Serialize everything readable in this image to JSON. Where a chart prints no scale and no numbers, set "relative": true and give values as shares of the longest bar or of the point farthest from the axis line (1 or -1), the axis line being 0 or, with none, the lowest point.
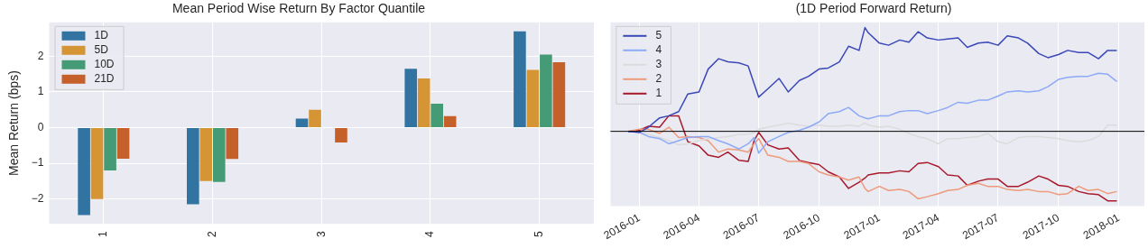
{
  "chart_data": [
    {
      "type": "bar",
      "title": "Mean Period Wise Return By Factor Quantile",
      "ylabel": "Mean Return (bps)",
      "categories": [
        "1",
        "2",
        "3",
        "4",
        "5"
      ],
      "series": [
        {
          "name": "1D",
          "color": "#3274a1",
          "values": [
            -2.45,
            -2.15,
            0.25,
            1.65,
            2.7
          ]
        },
        {
          "name": "5D",
          "color": "#d69534",
          "values": [
            -2.0,
            -1.5,
            0.5,
            1.38,
            1.62
          ]
        },
        {
          "name": "10D",
          "color": "#459b76",
          "values": [
            -1.2,
            -1.52,
            null,
            0.67,
            2.05
          ]
        },
        {
          "name": "21D",
          "color": "#c6602a",
          "values": [
            -0.87,
            -0.88,
            -0.42,
            0.32,
            1.83
          ]
        }
      ],
      "ylim": [
        -2.7,
        2.95
      ],
      "yticks": [
        -2,
        -1,
        0,
        1,
        2
      ],
      "grid": true,
      "legend": "top left"
    },
    {
      "type": "line",
      "title": "(1D Period Forward Return)",
      "relative": true,
      "x": [
        "2015-12-15",
        "2016-01-01",
        "2016-01-15",
        "2016-02-01",
        "2016-02-15",
        "2016-03-01",
        "2016-03-15",
        "2016-04-01",
        "2016-04-15",
        "2016-05-01",
        "2016-05-15",
        "2016-06-01",
        "2016-06-15",
        "2016-06-24",
        "2016-07-01",
        "2016-07-15",
        "2016-08-01",
        "2016-08-15",
        "2016-09-01",
        "2016-09-15",
        "2016-10-01",
        "2016-10-15",
        "2016-11-01",
        "2016-11-15",
        "2016-12-01",
        "2016-12-10",
        "2016-12-15",
        "2017-01-01",
        "2017-01-15",
        "2017-02-01",
        "2017-02-15",
        "2017-03-01",
        "2017-03-15",
        "2017-04-01",
        "2017-04-15",
        "2017-05-01",
        "2017-05-15",
        "2017-06-01",
        "2017-06-15",
        "2017-07-01",
        "2017-07-15",
        "2017-08-01",
        "2017-08-15",
        "2017-09-01",
        "2017-09-15",
        "2017-10-01",
        "2017-10-15",
        "2017-11-01",
        "2017-11-15",
        "2017-12-01",
        "2017-12-15",
        "2017-12-29"
      ],
      "series": [
        {
          "name": "5",
          "color": "#3a48b8",
          "values": [
            0,
            -0.01,
            0.04,
            0.13,
            0.15,
            0.19,
            0.36,
            0.38,
            0.6,
            0.7,
            0.67,
            0.66,
            0.63,
            0.46,
            0.33,
            0.41,
            0.51,
            0.38,
            0.49,
            0.53,
            0.6,
            0.61,
            0.67,
            0.82,
            0.78,
            1.0,
            0.95,
            0.85,
            0.83,
            0.88,
            0.86,
            0.96,
            0.9,
            0.88,
            0.89,
            0.9,
            0.81,
            0.85,
            0.86,
            0.83,
            0.92,
            0.9,
            0.85,
            0.75,
            0.71,
            0.74,
            0.78,
            0.76,
            0.76,
            0.7,
            0.78,
            0.78
          ]
        },
        {
          "name": "4",
          "color": "#8daaf7",
          "values": [
            0,
            -0.01,
            -0.05,
            -0.07,
            -0.12,
            -0.09,
            -0.06,
            -0.05,
            -0.05,
            -0.09,
            -0.12,
            -0.17,
            -0.12,
            -0.06,
            -0.21,
            -0.1,
            -0.05,
            -0.01,
            0.01,
            0.04,
            0.09,
            0.17,
            0.19,
            0.23,
            0.15,
            0.13,
            0.12,
            0.15,
            0.15,
            0.19,
            0.2,
            0.2,
            0.17,
            0.2,
            0.23,
            0.28,
            0.27,
            0.3,
            0.3,
            0.34,
            0.38,
            0.39,
            0.38,
            0.39,
            0.43,
            0.5,
            0.52,
            0.53,
            0.53,
            0.56,
            0.55,
            0.48
          ]
        },
        {
          "name": "3",
          "color": "#dcdbdb",
          "values": [
            0,
            -0.01,
            -0.03,
            -0.06,
            -0.09,
            -0.13,
            -0.12,
            -0.09,
            -0.07,
            -0.06,
            -0.05,
            -0.03,
            -0.03,
            -0.01,
            0.02,
            0.04,
            0.06,
            0.08,
            0.06,
            0.05,
            0.06,
            0.05,
            0.05,
            0.06,
            0.05,
            0.08,
            0.06,
            0.04,
            0.05,
            0.02,
            -0.02,
            -0.05,
            -0.07,
            -0.12,
            -0.07,
            -0.07,
            -0.06,
            -0.05,
            -0.02,
            -0.1,
            -0.12,
            -0.06,
            -0.05,
            -0.05,
            -0.06,
            -0.07,
            -0.09,
            -0.1,
            -0.09,
            -0.05,
            0.06,
            0.06
          ]
        },
        {
          "name": "2",
          "color": "#ee9a7b",
          "values": [
            0,
            0.02,
            0.02,
            -0.02,
            0.04,
            -0.06,
            -0.05,
            -0.06,
            -0.09,
            -0.2,
            -0.17,
            -0.18,
            -0.2,
            -0.12,
            -0.07,
            -0.23,
            -0.25,
            -0.29,
            -0.29,
            -0.31,
            -0.39,
            -0.42,
            -0.44,
            -0.47,
            -0.44,
            -0.55,
            -0.58,
            -0.53,
            -0.57,
            -0.56,
            -0.58,
            -0.65,
            -0.63,
            -0.6,
            -0.57,
            -0.56,
            -0.52,
            -0.5,
            -0.53,
            -0.53,
            -0.56,
            -0.57,
            -0.56,
            -0.58,
            -0.58,
            -0.61,
            -0.6,
            -0.53,
            -0.57,
            -0.56,
            -0.6,
            -0.58
          ]
        },
        {
          "name": "1",
          "color": "#a8192c",
          "values": [
            0,
            0.01,
            0.05,
            0.04,
            0.15,
            0.15,
            -0.1,
            -0.14,
            -0.23,
            -0.25,
            -0.2,
            -0.28,
            -0.29,
            -0.09,
            -0.01,
            -0.13,
            -0.17,
            -0.16,
            -0.28,
            -0.3,
            -0.32,
            -0.39,
            -0.44,
            -0.55,
            -0.49,
            -0.45,
            -0.42,
            -0.4,
            -0.4,
            -0.38,
            -0.39,
            -0.31,
            -0.3,
            -0.34,
            -0.42,
            -0.43,
            -0.52,
            -0.48,
            -0.46,
            -0.46,
            -0.53,
            -0.53,
            -0.49,
            -0.43,
            -0.46,
            -0.52,
            -0.53,
            -0.58,
            -0.6,
            -0.61,
            -0.67,
            -0.67
          ]
        }
      ],
      "xlim": [
        "2015-11-18",
        "2018-02-09"
      ],
      "xticks": [
        "2016-01",
        "2016-04",
        "2016-07",
        "2016-10",
        "2017-01",
        "2017-04",
        "2017-07",
        "2017-10",
        "2018-01"
      ],
      "grid": "x",
      "legend": "top left",
      "tick_labels": "x"
    }
  ]
}
